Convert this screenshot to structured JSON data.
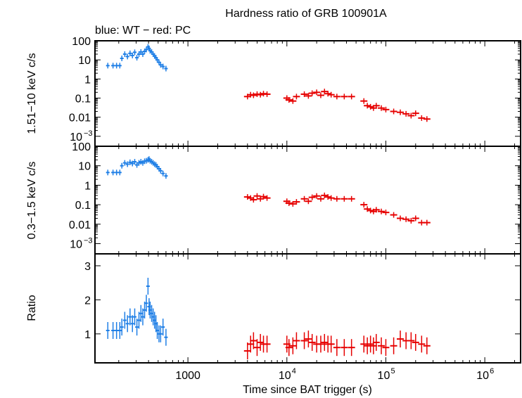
{
  "chart_data": [
    {
      "panel": "top",
      "type": "scatter",
      "title": "Hardness ratio of GRB 100901A",
      "subtitle": "blue: WT − red: PC",
      "ylabel": "1.51−10 keV c/s",
      "xlabel": "",
      "x_scale": "log",
      "y_scale": "log",
      "xlim": [
        115,
        2300000
      ],
      "ylim": [
        0.0003,
        100
      ],
      "y_ticks": [
        {
          "v": 100,
          "t": "100"
        },
        {
          "v": 10,
          "t": "10"
        },
        {
          "v": 1,
          "t": "1"
        },
        {
          "v": 0.1,
          "t": "0.1"
        },
        {
          "v": 0.01,
          "t": "0.01"
        },
        {
          "v": 0.001,
          "t": "10",
          "sup": "−3"
        }
      ],
      "series": [
        {
          "color": "#1f7fe6",
          "x": [
            155,
            175,
            190,
            205,
            215,
            230,
            245,
            260,
            275,
            290,
            305,
            320,
            335,
            350,
            365,
            380,
            395,
            405,
            415,
            430,
            445,
            460,
            475,
            490,
            510,
            530,
            560,
            600
          ],
          "y": [
            5,
            5,
            5,
            5,
            12,
            20,
            15,
            22,
            17,
            25,
            13,
            20,
            26,
            20,
            28,
            35,
            48,
            40,
            30,
            26,
            20,
            16,
            13,
            10,
            7.5,
            5.5,
            4.5,
            3.5
          ]
        },
        {
          "color": "#e60000",
          "x": [
            4000,
            4300,
            4600,
            5000,
            5400,
            5800,
            6300,
            10000,
            10500,
            11500,
            12500,
            15000,
            16500,
            18000,
            20000,
            22000,
            24000,
            26000,
            28000,
            32000,
            38000,
            45000,
            60000,
            65000,
            70000,
            75000,
            80000,
            90000,
            100000,
            120000,
            140000,
            160000,
            180000,
            200000,
            230000,
            260000
          ],
          "y": [
            0.12,
            0.15,
            0.14,
            0.16,
            0.15,
            0.17,
            0.16,
            0.1,
            0.08,
            0.07,
            0.12,
            0.16,
            0.13,
            0.18,
            0.2,
            0.14,
            0.22,
            0.17,
            0.15,
            0.12,
            0.12,
            0.12,
            0.07,
            0.04,
            0.035,
            0.03,
            0.04,
            0.03,
            0.025,
            0.02,
            0.018,
            0.015,
            0.012,
            0.016,
            0.009,
            0.008
          ]
        }
      ]
    },
    {
      "panel": "middle",
      "type": "scatter",
      "ylabel": "0.3−1.5 keV c/s",
      "xlabel": "",
      "x_scale": "log",
      "y_scale": "log",
      "xlim": [
        115,
        2300000
      ],
      "ylim": [
        0.0003,
        100
      ],
      "y_ticks": [
        {
          "v": 100,
          "t": "100"
        },
        {
          "v": 10,
          "t": "10"
        },
        {
          "v": 1,
          "t": "1"
        },
        {
          "v": 0.1,
          "t": "0.1"
        },
        {
          "v": 0.01,
          "t": "0.01"
        },
        {
          "v": 0.001,
          "t": "10",
          "sup": "−3"
        }
      ],
      "series": [
        {
          "color": "#1f7fe6",
          "x": [
            155,
            175,
            190,
            205,
            215,
            230,
            245,
            260,
            275,
            290,
            305,
            320,
            335,
            350,
            365,
            380,
            395,
            405,
            415,
            430,
            445,
            460,
            475,
            490,
            510,
            530,
            560,
            600
          ],
          "y": [
            4.5,
            4.5,
            4.5,
            4.5,
            10,
            14,
            12,
            15,
            13,
            16,
            11,
            14,
            16,
            14,
            17,
            18,
            20,
            22,
            18,
            16,
            14,
            12,
            11,
            9,
            7,
            5.5,
            4,
            3
          ]
        },
        {
          "color": "#e60000",
          "x": [
            4000,
            4300,
            4600,
            5000,
            5400,
            5800,
            6300,
            10000,
            10500,
            11500,
            12500,
            15000,
            16500,
            18000,
            20000,
            22000,
            24000,
            26000,
            28000,
            32000,
            38000,
            45000,
            60000,
            65000,
            70000,
            75000,
            80000,
            90000,
            100000,
            120000,
            140000,
            160000,
            180000,
            200000,
            230000,
            260000
          ],
          "y": [
            0.25,
            0.22,
            0.18,
            0.28,
            0.2,
            0.26,
            0.22,
            0.15,
            0.12,
            0.11,
            0.14,
            0.2,
            0.15,
            0.24,
            0.28,
            0.2,
            0.3,
            0.25,
            0.22,
            0.2,
            0.2,
            0.2,
            0.1,
            0.06,
            0.05,
            0.045,
            0.055,
            0.045,
            0.04,
            0.03,
            0.02,
            0.018,
            0.015,
            0.02,
            0.012,
            0.012
          ]
        }
      ]
    },
    {
      "panel": "bottom",
      "type": "scatter",
      "ylabel": "Ratio",
      "xlabel": "Time since BAT trigger (s)",
      "x_scale": "log",
      "y_scale": "linear",
      "xlim": [
        115,
        2300000
      ],
      "ylim": [
        0.15,
        3.35
      ],
      "y_ticks": [
        {
          "v": 1,
          "t": "1"
        },
        {
          "v": 2,
          "t": "2"
        },
        {
          "v": 3,
          "t": "3"
        }
      ],
      "x_ticks": [
        {
          "v": 1000,
          "t": "1000"
        },
        {
          "v": 10000,
          "t": "10",
          "sup": "4"
        },
        {
          "v": 100000,
          "t": "10",
          "sup": "5"
        },
        {
          "v": 1000000,
          "t": "10",
          "sup": "6"
        }
      ],
      "series": [
        {
          "color": "#1f7fe6",
          "x": [
            155,
            175,
            190,
            205,
            215,
            230,
            245,
            260,
            275,
            290,
            305,
            320,
            335,
            350,
            365,
            380,
            395,
            405,
            415,
            430,
            445,
            460,
            475,
            490,
            510,
            530,
            560,
            600
          ],
          "y": [
            1.1,
            1.1,
            1.1,
            1.1,
            1.2,
            1.4,
            1.3,
            1.5,
            1.3,
            1.5,
            1.2,
            1.4,
            1.6,
            1.5,
            1.7,
            1.9,
            2.4,
            1.8,
            1.7,
            1.6,
            1.5,
            1.4,
            1.3,
            1.1,
            1.0,
            1.0,
            1.2,
            0.9
          ]
        },
        {
          "color": "#e60000",
          "x": [
            4000,
            4300,
            4600,
            5000,
            5400,
            5800,
            6300,
            10000,
            10500,
            11500,
            12500,
            15000,
            16500,
            18000,
            20000,
            22000,
            24000,
            26000,
            28000,
            32000,
            38000,
            45000,
            60000,
            65000,
            70000,
            75000,
            80000,
            90000,
            100000,
            120000,
            140000,
            160000,
            180000,
            200000,
            230000,
            260000
          ],
          "y": [
            0.5,
            0.7,
            0.8,
            0.6,
            0.75,
            0.7,
            0.7,
            0.7,
            0.6,
            0.65,
            0.8,
            0.8,
            0.85,
            0.75,
            0.7,
            0.7,
            0.75,
            0.7,
            0.7,
            0.6,
            0.6,
            0.6,
            0.7,
            0.65,
            0.7,
            0.65,
            0.75,
            0.65,
            0.6,
            0.65,
            0.85,
            0.8,
            0.8,
            0.75,
            0.7,
            0.65
          ]
        }
      ]
    }
  ],
  "title": "Hardness ratio of GRB 100901A",
  "subtitle": "blue: WT − red: PC",
  "xlabel": "Time since BAT trigger (s)"
}
